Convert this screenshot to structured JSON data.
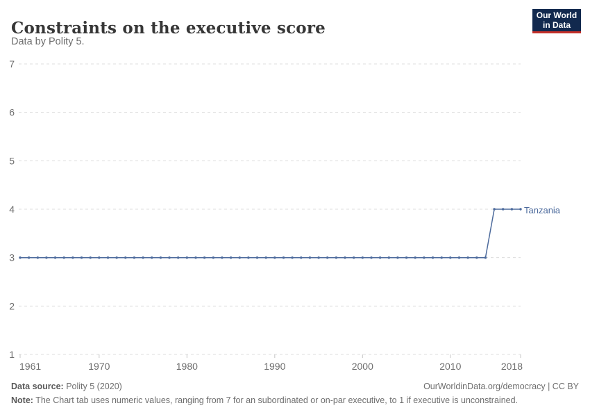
{
  "header": {
    "title": "Constraints on the executive score",
    "subtitle": "Data by Polity 5."
  },
  "logo": {
    "line1": "Our World",
    "line2": "in Data",
    "bg_color": "#12294e",
    "accent_color": "#c4302a"
  },
  "chart_data": {
    "type": "line",
    "title": "Constraints on the executive score",
    "xlabel": "",
    "ylabel": "",
    "ylim": [
      1,
      7
    ],
    "yticks": [
      1,
      2,
      3,
      4,
      5,
      6,
      7
    ],
    "xticks": [
      1961,
      1970,
      1980,
      1990,
      2000,
      2010,
      2018
    ],
    "xlim": [
      1961,
      2018
    ],
    "grid": "horizontal-dashed",
    "legend_position": "end-of-line",
    "x": [
      1961,
      1962,
      1963,
      1964,
      1965,
      1966,
      1967,
      1968,
      1969,
      1970,
      1971,
      1972,
      1973,
      1974,
      1975,
      1976,
      1977,
      1978,
      1979,
      1980,
      1981,
      1982,
      1983,
      1984,
      1985,
      1986,
      1987,
      1988,
      1989,
      1990,
      1991,
      1992,
      1993,
      1994,
      1995,
      1996,
      1997,
      1998,
      1999,
      2000,
      2001,
      2002,
      2003,
      2004,
      2005,
      2006,
      2007,
      2008,
      2009,
      2010,
      2011,
      2012,
      2013,
      2014,
      2015,
      2016,
      2017,
      2018
    ],
    "series": [
      {
        "name": "Tanzania",
        "color": "#4C6A9C",
        "values": [
          3,
          3,
          3,
          3,
          3,
          3,
          3,
          3,
          3,
          3,
          3,
          3,
          3,
          3,
          3,
          3,
          3,
          3,
          3,
          3,
          3,
          3,
          3,
          3,
          3,
          3,
          3,
          3,
          3,
          3,
          3,
          3,
          3,
          3,
          3,
          3,
          3,
          3,
          3,
          3,
          3,
          3,
          3,
          3,
          3,
          3,
          3,
          3,
          3,
          3,
          3,
          3,
          3,
          3,
          4,
          4,
          4,
          4
        ]
      }
    ],
    "grid_color": "#dcdcdc",
    "tick_label_color": "#6e6e6e"
  },
  "footer": {
    "source_label": "Data source:",
    "source_value": " Polity 5 (2020)",
    "link": "OurWorldinData.org/democracy | CC BY",
    "note_label": "Note:",
    "note_value": " The Chart tab uses numeric values, ranging from 7 for an subordinated or on-par executive, to 1 if executive is unconstrained."
  }
}
